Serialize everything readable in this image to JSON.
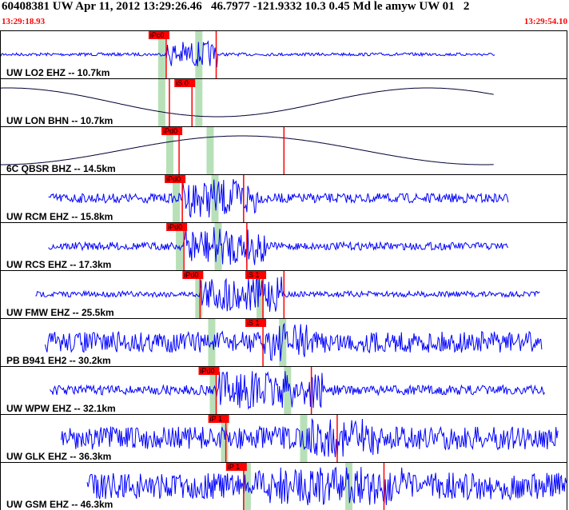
{
  "header": {
    "title": "60408381 UW Apr 11, 2012 13:29:26.46   46.7977 -121.9332 10.3 0.45 Md le amyw UW 01   2",
    "time_start": "13:29:18.93",
    "time_end": "13:29:54.10"
  },
  "colors": {
    "trace": "#0000ff",
    "pick": "#ff0000",
    "window": "#b8e0b8",
    "background": "#ffffff",
    "axis": "#000000"
  },
  "chart_data": {
    "type": "line",
    "time_range": [
      "13:29:18.93",
      "13:29:54.10"
    ],
    "xlim_seconds": [
      0,
      35.17
    ],
    "panels": [
      {
        "label": "UW LO2 EHZ -- 10.7km",
        "trace": "noise",
        "start": 0.0,
        "end": 30.7,
        "amp": 0.08,
        "burst": [
          10.3,
          13.5
        ],
        "picks": [
          {
            "text": "iPc0",
            "t": 10.3
          },
          {
            "text": "",
            "t": 13.4
          }
        ],
        "windows": [
          {
            "t": 10.0
          },
          {
            "t": 12.3
          }
        ]
      },
      {
        "label": "UW LON BHN -- 10.7km",
        "trace": "sine",
        "start": 0.0,
        "end": 30.7,
        "picks": [
          {
            "text": "iS 0",
            "t": 11.9
          },
          {
            "text": "",
            "t": 10.5
          }
        ],
        "windows": [
          {
            "t": 10.0
          },
          {
            "t": 12.3
          }
        ]
      },
      {
        "label": "6C QBSR BHZ -- 14.5km",
        "trace": "sine",
        "start": 0.0,
        "end": 30.7,
        "picks": [
          {
            "text": "iPd0",
            "t": 11.1
          },
          {
            "text": "",
            "t": 17.6
          }
        ],
        "windows": [
          {
            "t": 10.5
          },
          {
            "t": 13.0
          }
        ]
      },
      {
        "label": "UW RCM EHZ -- 15.8km",
        "trace": "noise",
        "start": 3.0,
        "end": 31.5,
        "amp": 0.25,
        "burst": [
          11.3,
          16.0
        ],
        "picks": [
          {
            "text": "iPd0",
            "t": 11.3
          },
          {
            "text": "",
            "t": 15.1
          }
        ],
        "windows": [
          {
            "t": 10.9
          },
          {
            "t": 13.3
          }
        ]
      },
      {
        "label": "UW RCS EHZ -- 17.3km",
        "trace": "noise",
        "start": 3.0,
        "end": 31.5,
        "amp": 0.2,
        "burst": [
          11.4,
          16.5
        ],
        "picks": [
          {
            "text": "iPd0",
            "t": 11.4
          },
          {
            "text": "",
            "t": 15.3
          }
        ],
        "windows": [
          {
            "t": 11.1
          },
          {
            "t": 13.5
          }
        ]
      },
      {
        "label": "UW FMW EHZ -- 25.5km",
        "trace": "noise",
        "start": 2.2,
        "end": 33.5,
        "amp": 0.15,
        "burst": [
          12.4,
          17.5
        ],
        "picks": [
          {
            "text": "iPd0",
            "t": 12.4
          },
          {
            "text": "iS 1",
            "t": 16.3
          },
          {
            "text": "",
            "t": 17.6
          }
        ],
        "windows": [
          {
            "t": 12.3
          },
          {
            "t": 16.1
          }
        ]
      },
      {
        "label": "PB B941 EH2 -- 30.2km",
        "trace": "noise",
        "start": 2.8,
        "end": 33.6,
        "amp": 0.55,
        "burst": [
          16.3,
          19.0
        ],
        "picks": [
          {
            "text": "iS 1",
            "t": 16.3
          }
        ],
        "windows": [
          {
            "t": 13.1
          },
          {
            "t": 17.5
          }
        ]
      },
      {
        "label": "UW WPW EHZ -- 32.1km",
        "trace": "noise",
        "start": 3.1,
        "end": 33.8,
        "amp": 0.25,
        "burst": [
          13.4,
          20.0
        ],
        "picks": [
          {
            "text": "iPd0",
            "t": 13.4
          },
          {
            "text": "",
            "t": 19.3
          }
        ],
        "windows": [
          {
            "t": 13.2
          },
          {
            "t": 17.8
          }
        ]
      },
      {
        "label": "UW GLK EHZ -- 36.3km",
        "trace": "noise",
        "start": 3.8,
        "end": 34.6,
        "amp": 0.6,
        "burst": [
          19.0,
          23.5
        ],
        "picks": [
          {
            "text": "iP 1",
            "t": 14.0
          },
          {
            "text": "",
            "t": 20.9
          }
        ],
        "windows": [
          {
            "t": 13.9
          },
          {
            "t": 18.8
          }
        ]
      },
      {
        "label": "UW GSM EHZ -- 46.3km",
        "trace": "noise",
        "start": 5.4,
        "end": 35.17,
        "amp": 0.7,
        "burst": [
          16.0,
          25.0
        ],
        "picks": [
          {
            "text": "iP 1",
            "t": 15.1
          },
          {
            "text": "",
            "t": 23.8
          }
        ],
        "windows": [
          {
            "t": 15.3
          },
          {
            "t": 21.6
          }
        ]
      }
    ]
  }
}
